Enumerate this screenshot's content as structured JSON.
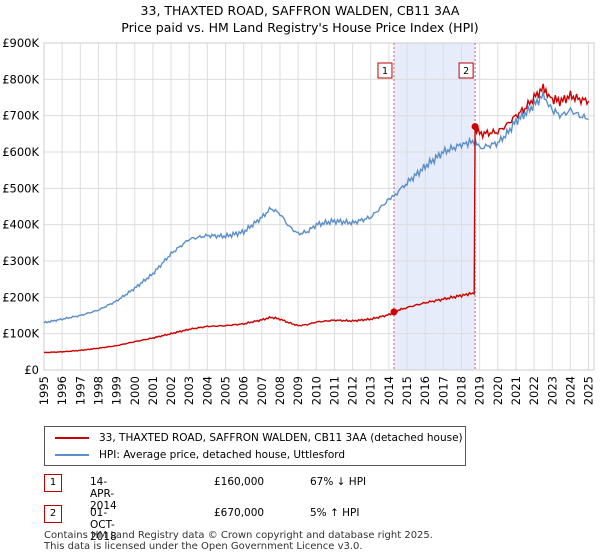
{
  "chart_data": {
    "type": "line",
    "title": "33, THAXTED ROAD, SAFFRON WALDEN, CB11 3AA",
    "subtitle": "Price paid vs. HM Land Registry's House Price Index (HPI)",
    "xlim": [
      1995,
      2025.3
    ],
    "ylim": [
      0,
      900000
    ],
    "x_ticks": [
      1995,
      1996,
      1997,
      1998,
      1999,
      2000,
      2001,
      2002,
      2003,
      2004,
      2005,
      2006,
      2007,
      2008,
      2009,
      2010,
      2011,
      2012,
      2013,
      2014,
      2015,
      2016,
      2017,
      2018,
      2019,
      2020,
      2021,
      2022,
      2023,
      2024,
      2025
    ],
    "y_ticks": [
      0,
      100000,
      200000,
      300000,
      400000,
      500000,
      600000,
      700000,
      800000,
      900000
    ],
    "y_tick_labels": [
      "£0",
      "£100K",
      "£200K",
      "£300K",
      "£400K",
      "£500K",
      "£600K",
      "£700K",
      "£800K",
      "£900K"
    ],
    "grid": true,
    "shaded_region": [
      2014.28,
      2018.75
    ],
    "series": [
      {
        "name": "33, THAXTED ROAD, SAFFRON WALDEN, CB11 3AA (detached house)",
        "color": "#cc0000",
        "x": [
          1995,
          1996,
          1997,
          1998,
          1999,
          2000,
          2001,
          2002,
          2003,
          2004,
          2005,
          2006,
          2007,
          2007.5,
          2008,
          2008.5,
          2009,
          2009.5,
          2010,
          2011,
          2012,
          2013,
          2014,
          2014.28,
          2015,
          2016,
          2017,
          2018,
          2018.7,
          2018.75,
          2019,
          2020,
          2020.5,
          2021,
          2021.5,
          2022,
          2022.5,
          2022.8,
          2023,
          2023.5,
          2024,
          2024.5,
          2025
        ],
        "values": [
          48000,
          50000,
          54000,
          60000,
          67000,
          78000,
          88000,
          100000,
          112000,
          120000,
          122000,
          127000,
          138000,
          145000,
          140000,
          130000,
          122000,
          125000,
          132000,
          137000,
          135000,
          140000,
          152000,
          160000,
          172000,
          185000,
          195000,
          205000,
          212000,
          670000,
          650000,
          655000,
          675000,
          700000,
          720000,
          750000,
          775000,
          760000,
          745000,
          740000,
          755000,
          745000,
          740000
        ]
      },
      {
        "name": "HPI: Average price, detached house, Uttlesford",
        "color": "#5b8fc9",
        "x": [
          1995,
          1996,
          1997,
          1998,
          1999,
          2000,
          2001,
          2002,
          2003,
          2004,
          2005,
          2006,
          2007,
          2007.5,
          2008,
          2008.5,
          2009,
          2009.5,
          2010,
          2011,
          2012,
          2013,
          2014,
          2014.28,
          2015,
          2016,
          2017,
          2018,
          2018.7,
          2019,
          2020,
          2020.5,
          2021,
          2021.5,
          2022,
          2022.5,
          2022.8,
          2023,
          2023.5,
          2024,
          2024.5,
          2025
        ],
        "values": [
          130000,
          140000,
          150000,
          165000,
          190000,
          225000,
          265000,
          320000,
          360000,
          370000,
          368000,
          380000,
          420000,
          445000,
          430000,
          395000,
          375000,
          380000,
          400000,
          410000,
          405000,
          420000,
          470000,
          480000,
          515000,
          560000,
          600000,
          620000,
          630000,
          610000,
          625000,
          650000,
          685000,
          705000,
          730000,
          755000,
          735000,
          715000,
          700000,
          715000,
          700000,
          690000
        ]
      }
    ],
    "markers": [
      {
        "label": "1",
        "x": 2014.28,
        "y": 160000
      },
      {
        "label": "2",
        "x": 2018.75,
        "y": 670000
      }
    ]
  },
  "legend": {
    "property_label": "33, THAXTED ROAD, SAFFRON WALDEN, CB11 3AA (detached house)",
    "hpi_label": "HPI: Average price, detached house, Uttlesford"
  },
  "sales": [
    {
      "num": "1",
      "date": "14-APR-2014",
      "price": "£160,000",
      "hpi": "67% ↓ HPI"
    },
    {
      "num": "2",
      "date": "01-OCT-2018",
      "price": "£670,000",
      "hpi": "5% ↑ HPI"
    }
  ],
  "footer": {
    "line1": "Contains HM Land Registry data © Crown copyright and database right 2025.",
    "line2": "This data is licensed under the Open Government Licence v3.0."
  }
}
